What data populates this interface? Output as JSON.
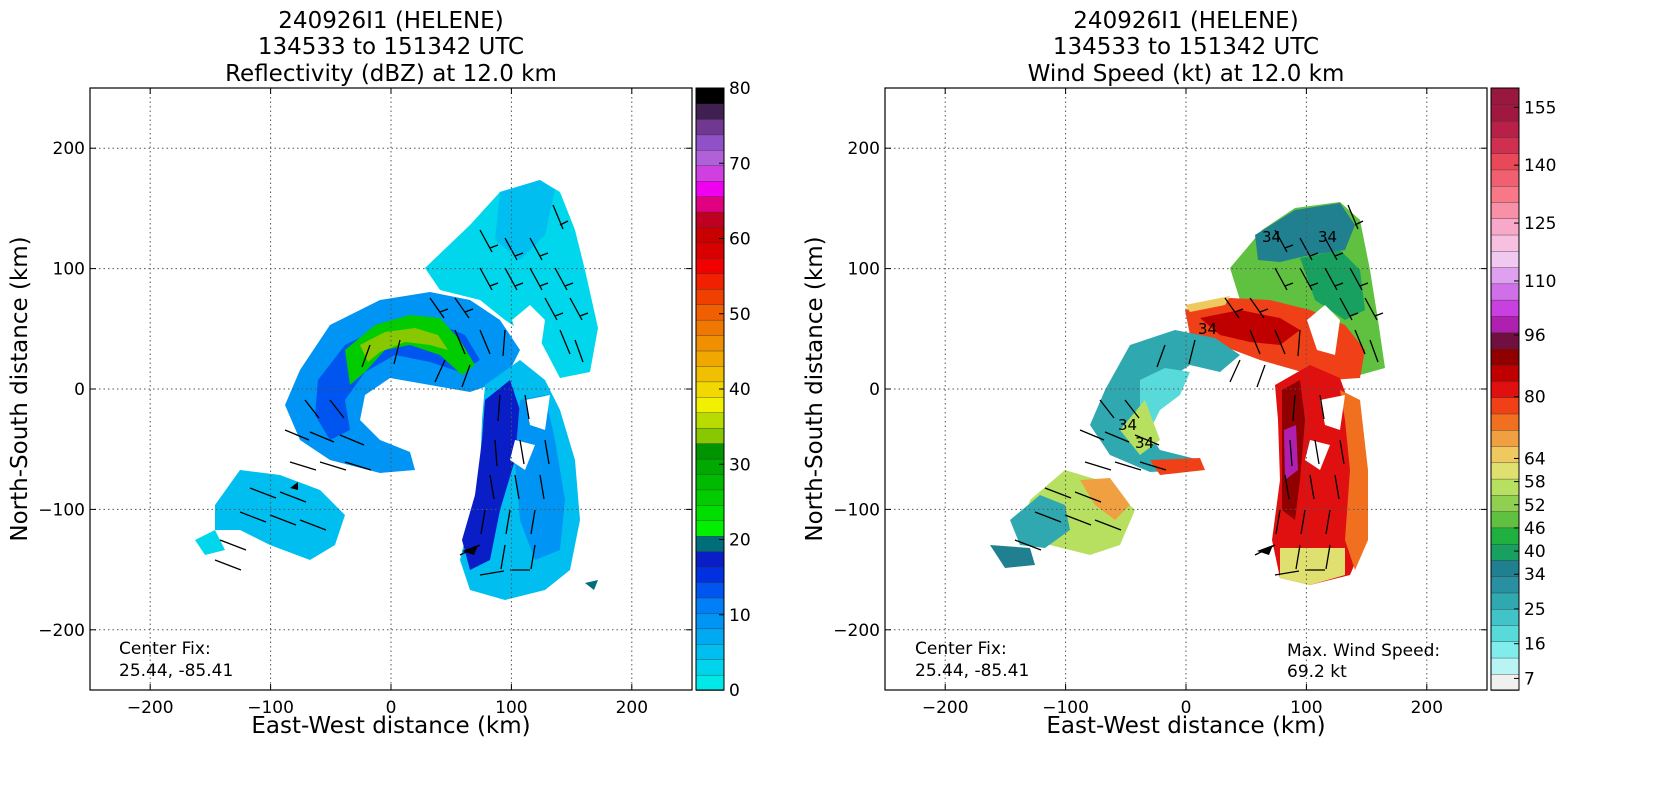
{
  "panels": [
    {
      "title_lines": [
        "240926I1 (HELENE)",
        "134533 to 151342 UTC",
        "Reflectivity (dBZ) at 12.0 km"
      ],
      "xlabel": "East-West distance (km)",
      "ylabel": "North-South distance (km)",
      "annotation_left": [
        "Center Fix:",
        "25.44, -85.41"
      ],
      "annotation_right": [],
      "colorbar": {
        "min": 0,
        "max": 80,
        "ticks": [
          "0",
          "10",
          "20",
          "30",
          "40",
          "50",
          "60",
          "70",
          "80"
        ],
        "colors": [
          "#00e8e8",
          "#00d4ec",
          "#00bff0",
          "#00aaf2",
          "#0094f4",
          "#007ff6",
          "#0055f0",
          "#0030e0",
          "#0a1ec8",
          "#006e7a",
          "#00f000",
          "#00de00",
          "#00cc00",
          "#00ba00",
          "#00a800",
          "#009400",
          "#88c800",
          "#b8dc00",
          "#f0f000",
          "#f0d800",
          "#f0c000",
          "#f0a800",
          "#f09000",
          "#f07800",
          "#f06000",
          "#f04000",
          "#f02000",
          "#f00000",
          "#d80000",
          "#c80000",
          "#c00020",
          "#e00080",
          "#f000f0",
          "#d040e0",
          "#b060d8",
          "#9050c8",
          "#703890",
          "#402050",
          "#000000"
        ]
      },
      "chart_data": {
        "type": "heatmap",
        "variable": "Reflectivity (dBZ)",
        "xlim": [
          -250,
          250
        ],
        "ylim": [
          -250,
          250
        ],
        "xticks": [
          "−200",
          "−100",
          "0",
          "100",
          "200"
        ],
        "yticks": [
          "−200",
          "−100",
          "0",
          "100",
          "200"
        ],
        "grid": true
      }
    },
    {
      "title_lines": [
        "240926I1 (HELENE)",
        "134533 to 151342 UTC",
        "Wind Speed (kt) at 12.0 km"
      ],
      "xlabel": "East-West distance (km)",
      "ylabel": "North-South distance (km)",
      "annotation_left": [
        "Center Fix:",
        "25.44, -85.41"
      ],
      "annotation_right": [
        "Max. Wind Speed:",
        "69.2 kt"
      ],
      "colorbar": {
        "min": 4,
        "max": 160,
        "ticks": [
          "7",
          "16",
          "25",
          "34",
          "40",
          "46",
          "52",
          "58",
          "64",
          "80",
          "96",
          "110",
          "125",
          "140",
          "155"
        ],
        "tick_values": [
          7,
          16,
          25,
          34,
          40,
          46,
          52,
          58,
          64,
          80,
          96,
          110,
          125,
          140,
          155
        ],
        "colors": [
          "#f0f0f0",
          "#b8f4f4",
          "#80ecec",
          "#58dada",
          "#40c4c8",
          "#30a8b0",
          "#2890a0",
          "#208090",
          "#18a060",
          "#20b040",
          "#60c040",
          "#90d050",
          "#b8e060",
          "#e0e070",
          "#f0c860",
          "#f0a040",
          "#f07020",
          "#f04018",
          "#e01010",
          "#c00000",
          "#900000",
          "#701040",
          "#b020b0",
          "#c840e0",
          "#d070e8",
          "#e0a0f0",
          "#f0c8f0",
          "#f8c0e0",
          "#f8a8c8",
          "#f890a8",
          "#f87888",
          "#f06070",
          "#e84858",
          "#d03050",
          "#b82048",
          "#a01840",
          "#981840"
        ]
      },
      "chart_data": {
        "type": "heatmap",
        "variable": "Wind Speed (kt)",
        "xlim": [
          -250,
          250
        ],
        "ylim": [
          -250,
          250
        ],
        "xticks": [
          "−200",
          "−100",
          "0",
          "100",
          "200"
        ],
        "yticks": [
          "−200",
          "−100",
          "0",
          "100",
          "200"
        ],
        "grid": true,
        "contour_labels": [
          "34",
          "34",
          "34",
          "34",
          "34"
        ],
        "max_wind_speed_kt": 69.2
      }
    }
  ]
}
